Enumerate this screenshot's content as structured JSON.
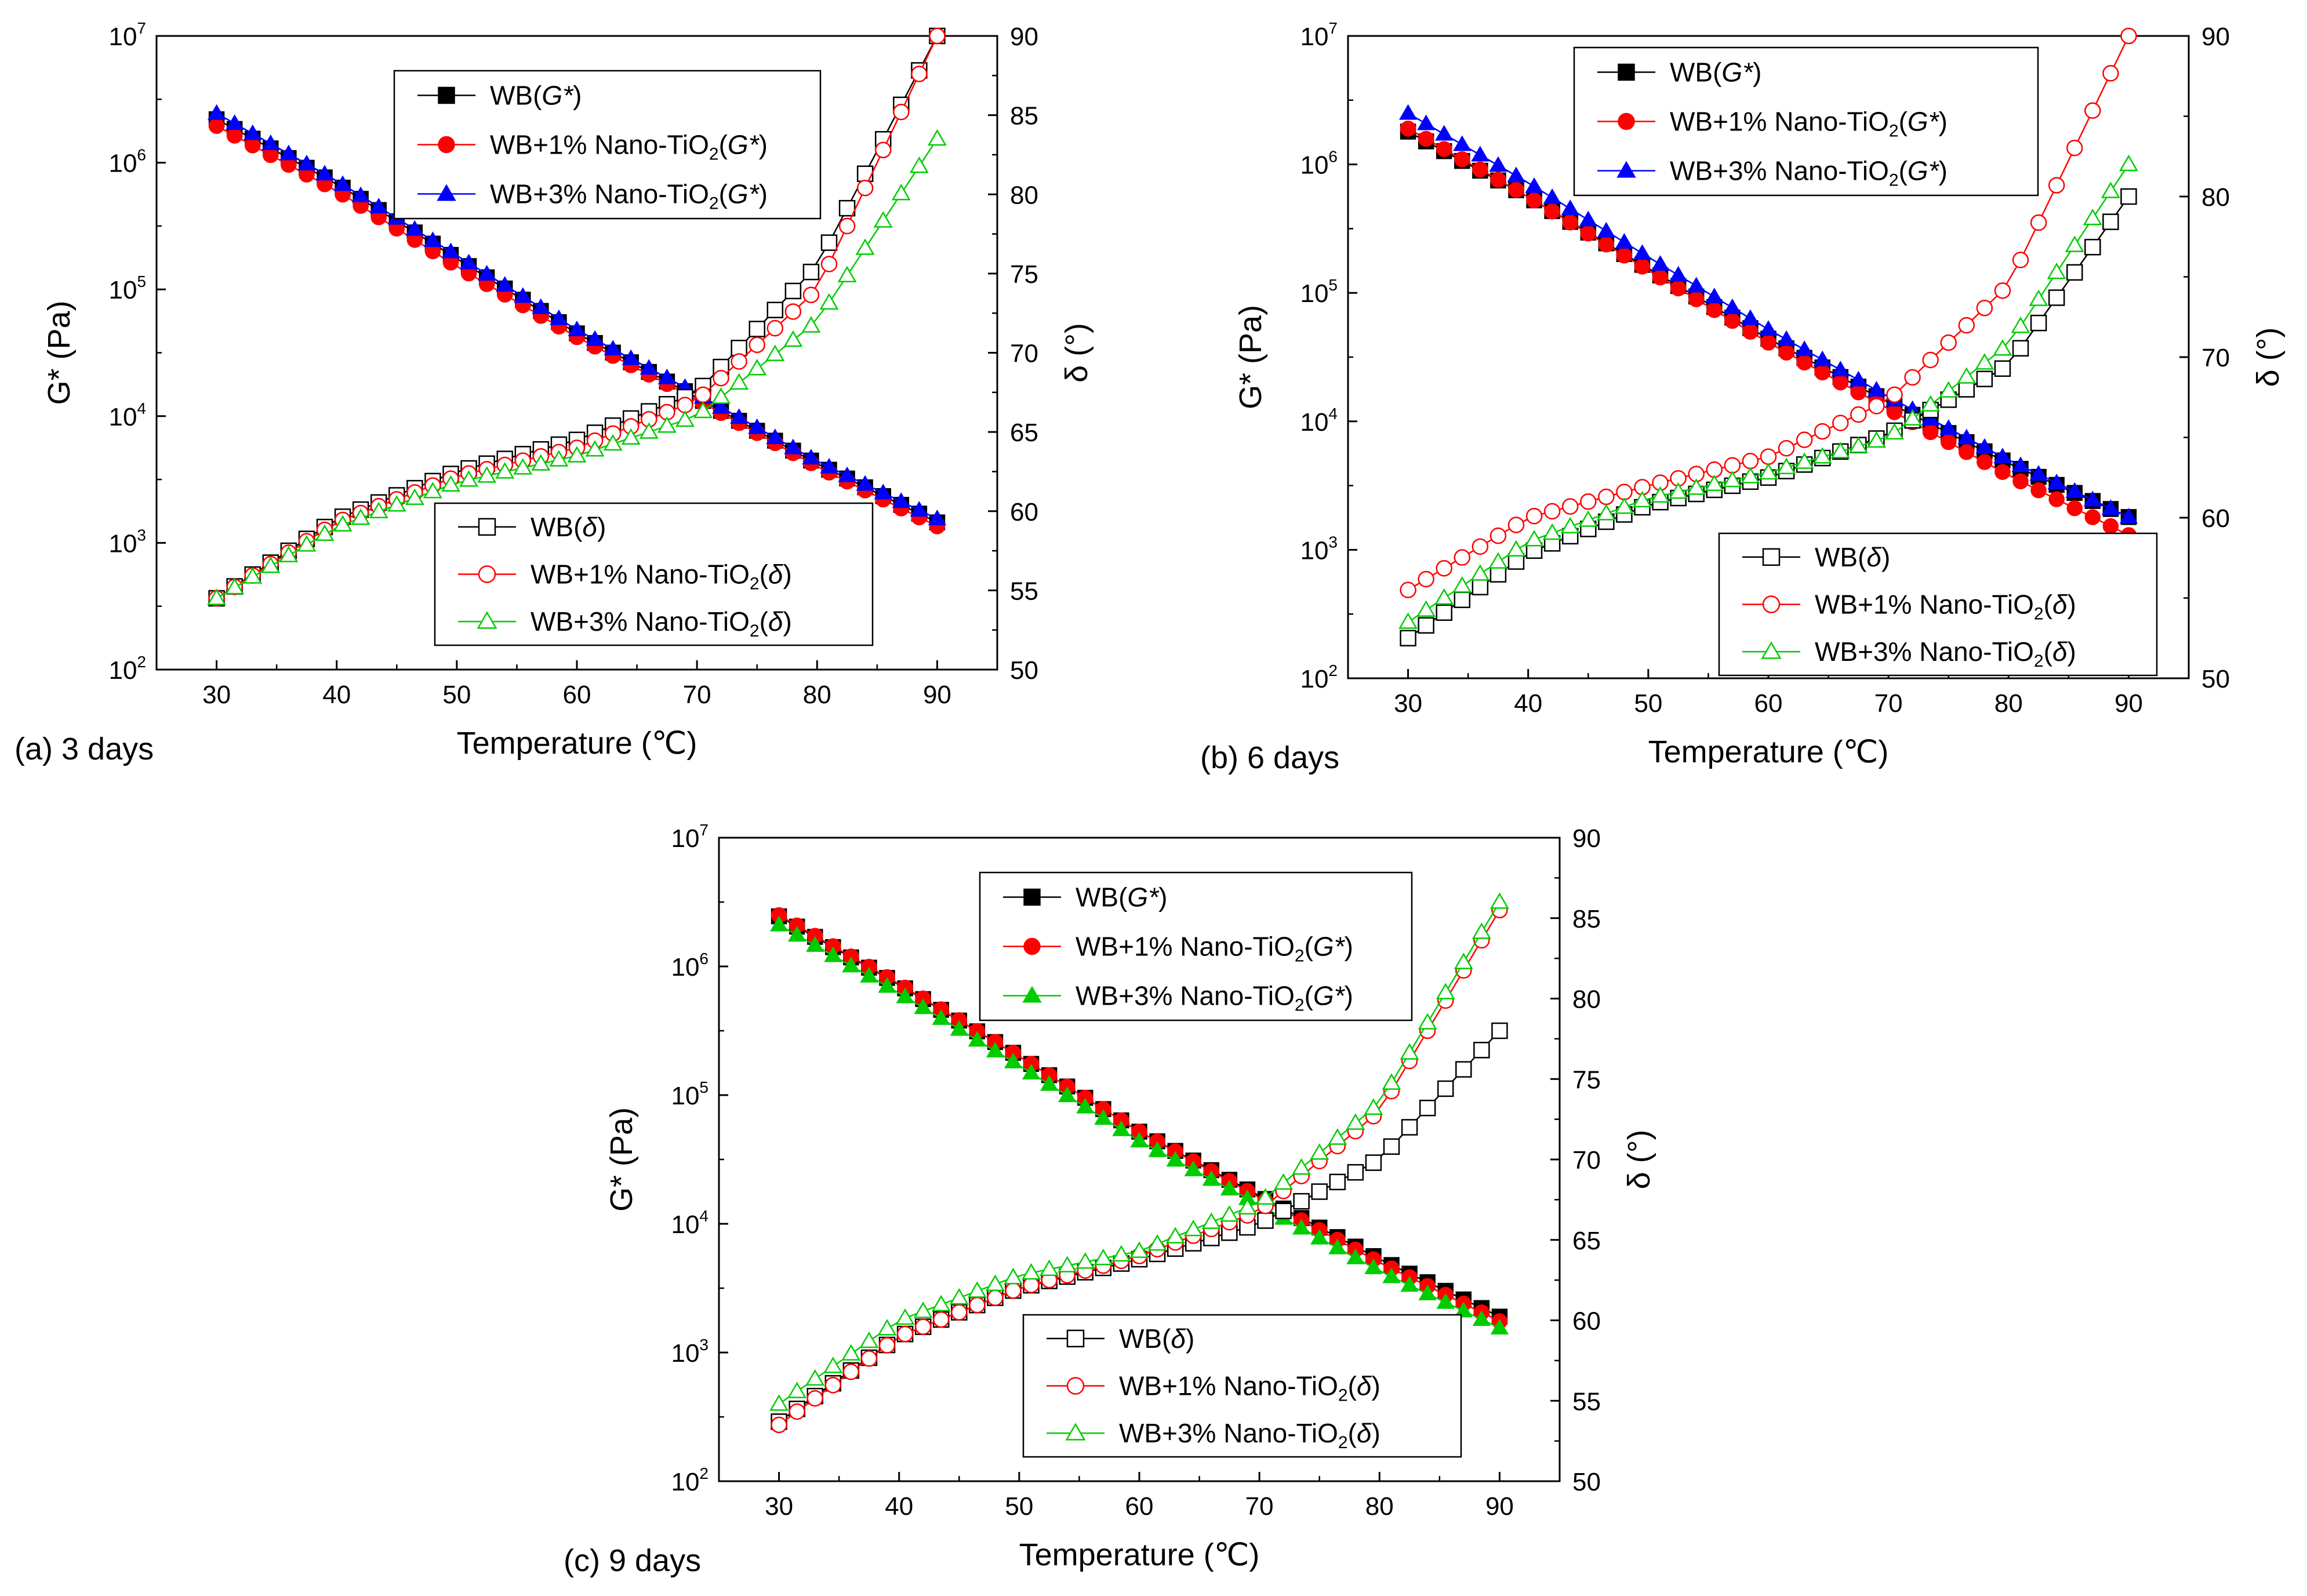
{
  "chart_data": [
    {
      "type": "line",
      "caption": "(a) 3 days",
      "xlabel": "Temperature (℃)",
      "ylabel_left": "G* (Pa)",
      "ylabel_right": "δ (°)",
      "xlim": [
        25,
        95
      ],
      "x_ticks": [
        30,
        40,
        50,
        60,
        70,
        80,
        90
      ],
      "y_left_log": true,
      "y_left_lim": [
        100,
        10000000
      ],
      "y_left_tick_exponents": [
        2,
        3,
        4,
        5,
        6,
        7
      ],
      "y_left_tick_base": "10",
      "y_right_lim": [
        50,
        90
      ],
      "y_right_ticks": [
        50,
        55,
        60,
        65,
        70,
        75,
        80,
        85,
        90
      ],
      "legend_top": [
        {
          "base": "WB(",
          "ital": "G*",
          "close": ")",
          "color": "#000000",
          "marker": "square"
        },
        {
          "base": "WB+1% Nano-TiO",
          "sub": "2",
          "paren": "(",
          "ital": "G*",
          "close": ")",
          "color": "#ff0000",
          "marker": "circle"
        },
        {
          "base": "WB+3% Nano-TiO",
          "sub": "2",
          "paren": "(",
          "ital": "G*",
          "close": ")",
          "color": "#0000ff",
          "marker": "triangle"
        }
      ],
      "legend_bottom": [
        {
          "base": "WB(",
          "ital": "δ",
          "close": ")",
          "color": "#000000",
          "marker": "square"
        },
        {
          "base": "WB+1% Nano-TiO",
          "sub": "2",
          "paren": "(",
          "ital": "δ",
          "close": ")",
          "color": "#ff0000",
          "marker": "circle"
        },
        {
          "base": "WB+3% Nano-TiO",
          "sub": "2",
          "paren": "(",
          "ital": "δ",
          "close": ")",
          "color": "#00cc00",
          "marker": "triangle"
        }
      ],
      "series": [
        {
          "name": "WB(G*)",
          "axis": "left",
          "color": "#000000",
          "marker": "square",
          "filled": true,
          "x": [
            30,
            40,
            50,
            60,
            70,
            80,
            90
          ],
          "values": [
            2200000,
            680000,
            175000,
            45000,
            14000,
            4200,
            1450
          ]
        },
        {
          "name": "WB+1% Nano-TiO2(G*)",
          "axis": "left",
          "color": "#ff0000",
          "marker": "circle",
          "filled": true,
          "x": [
            30,
            40,
            50,
            60,
            70,
            80,
            90
          ],
          "values": [
            1950000,
            600000,
            152000,
            42000,
            13500,
            4000,
            1350
          ]
        },
        {
          "name": "WB+3% Nano-TiO2(G*)",
          "axis": "left",
          "color": "#0000ff",
          "marker": "triangle",
          "filled": true,
          "x": [
            30,
            40,
            50,
            60,
            70,
            80,
            90
          ],
          "values": [
            2450000,
            720000,
            185000,
            48000,
            15000,
            4400,
            1550
          ]
        },
        {
          "name": "WB(δ)",
          "axis": "right",
          "color": "#000000",
          "marker": "square",
          "filled": false,
          "x": [
            30,
            40,
            50,
            60,
            70,
            80,
            90
          ],
          "values": [
            54.5,
            59.5,
            62.5,
            64.5,
            67.5,
            75.5,
            90
          ]
        },
        {
          "name": "WB+1% Nano-TiO2(δ)",
          "axis": "right",
          "color": "#ff0000",
          "marker": "circle",
          "filled": false,
          "x": [
            30,
            40,
            50,
            60,
            70,
            80,
            90
          ],
          "values": [
            54.5,
            59.3,
            62.2,
            64.0,
            67.0,
            74.0,
            90
          ]
        },
        {
          "name": "WB+3% Nano-TiO2(δ)",
          "axis": "right",
          "color": "#00cc00",
          "marker": "triangle",
          "filled": false,
          "x": [
            30,
            40,
            50,
            60,
            70,
            80,
            90
          ],
          "values": [
            54.5,
            59.0,
            61.8,
            63.5,
            66.0,
            72.0,
            83.5
          ]
        }
      ]
    },
    {
      "type": "line",
      "caption": "(b) 6 days",
      "xlabel": "Temperature (℃)",
      "ylabel_left": "G* (Pa)",
      "ylabel_right": "δ (°)",
      "xlim": [
        25,
        95
      ],
      "x_ticks": [
        30,
        40,
        50,
        60,
        70,
        80,
        90
      ],
      "y_left_log": true,
      "y_left_lim": [
        100,
        10000000
      ],
      "y_left_tick_exponents": [
        2,
        3,
        4,
        5,
        6,
        7
      ],
      "y_left_tick_base": "10",
      "y_right_lim": [
        50,
        90
      ],
      "y_right_ticks": [
        50,
        60,
        70,
        80,
        90
      ],
      "legend_top": [
        {
          "base": "WB(",
          "ital": "G*",
          "close": ")",
          "color": "#000000",
          "marker": "square"
        },
        {
          "base": "WB+1% Nano-TiO",
          "sub": "2",
          "paren": "(",
          "ital": "G*",
          "close": ")",
          "color": "#ff0000",
          "marker": "circle"
        },
        {
          "base": "WB+3% Nano-TiO",
          "sub": "2",
          "paren": "(",
          "ital": "G*",
          "close": ")",
          "color": "#0000ff",
          "marker": "triangle"
        }
      ],
      "legend_bottom": [
        {
          "base": "WB(",
          "ital": "δ",
          "close": ")",
          "color": "#000000",
          "marker": "square"
        },
        {
          "base": "WB+1% Nano-TiO",
          "sub": "2",
          "paren": "(",
          "ital": "δ",
          "close": ")",
          "color": "#ff0000",
          "marker": "circle"
        },
        {
          "base": "WB+3% Nano-TiO",
          "sub": "2",
          "paren": "(",
          "ital": "δ",
          "close": ")",
          "color": "#00cc00",
          "marker": "triangle"
        }
      ],
      "series": [
        {
          "name": "WB(G*)",
          "axis": "left",
          "color": "#000000",
          "marker": "square",
          "filled": true,
          "x": [
            30,
            40,
            50,
            60,
            70,
            80,
            90
          ],
          "values": [
            1800000,
            560000,
            155000,
            44000,
            14000,
            4700,
            1800
          ]
        },
        {
          "name": "WB+1% Nano-TiO2(G*)",
          "axis": "left",
          "color": "#ff0000",
          "marker": "circle",
          "filled": true,
          "x": [
            30,
            40,
            50,
            60,
            70,
            80,
            90
          ],
          "values": [
            1900000,
            560000,
            150000,
            41000,
            12500,
            3800,
            1300
          ]
        },
        {
          "name": "WB+3% Nano-TiO2(G*)",
          "axis": "left",
          "color": "#0000ff",
          "marker": "triangle",
          "filled": true,
          "x": [
            30,
            40,
            50,
            60,
            70,
            80,
            90
          ],
          "values": [
            2500000,
            720000,
            190000,
            52000,
            15500,
            5000,
            1800
          ]
        },
        {
          "name": "WB(δ)",
          "axis": "right",
          "color": "#000000",
          "marker": "square",
          "filled": false,
          "x": [
            30,
            40,
            50,
            60,
            70,
            80,
            90
          ],
          "values": [
            52.5,
            57.8,
            60.8,
            62.5,
            65.2,
            69.5,
            80.0
          ]
        },
        {
          "name": "WB+1% Nano-TiO2(δ)",
          "axis": "right",
          "color": "#ff0000",
          "marker": "circle",
          "filled": false,
          "x": [
            30,
            40,
            50,
            60,
            70,
            80,
            90
          ],
          "values": [
            55.5,
            60.0,
            62.0,
            63.8,
            67.3,
            74.5,
            90.0
          ]
        },
        {
          "name": "WB+3% Nano-TiO2(δ)",
          "axis": "right",
          "color": "#00cc00",
          "marker": "triangle",
          "filled": false,
          "x": [
            30,
            40,
            50,
            60,
            70,
            80,
            90
          ],
          "values": [
            53.5,
            58.5,
            61.2,
            62.8,
            65.0,
            70.8,
            82.0
          ]
        }
      ]
    },
    {
      "type": "line",
      "caption": "(c) 9 days",
      "xlabel": "Temperature (℃)",
      "ylabel_left": "G* (Pa)",
      "ylabel_right": "δ (°)",
      "xlim": [
        25,
        95
      ],
      "x_ticks": [
        30,
        40,
        50,
        60,
        70,
        80,
        90
      ],
      "y_left_log": true,
      "y_left_lim": [
        100,
        10000000
      ],
      "y_left_tick_exponents": [
        2,
        3,
        4,
        5,
        6,
        7
      ],
      "y_left_tick_base": "10",
      "y_right_lim": [
        50,
        90
      ],
      "y_right_ticks": [
        50,
        55,
        60,
        65,
        70,
        75,
        80,
        85,
        90
      ],
      "legend_top": [
        {
          "base": "WB(",
          "ital": "G*",
          "close": ")",
          "color": "#000000",
          "marker": "square"
        },
        {
          "base": "WB+1% Nano-TiO",
          "sub": "2",
          "paren": "(",
          "ital": "G*",
          "close": ")",
          "color": "#ff0000",
          "marker": "circle"
        },
        {
          "base": "WB+3% Nano-TiO",
          "sub": "2",
          "paren": "(",
          "ital": "G*",
          "close": ")",
          "color": "#00cc00",
          "marker": "triangle"
        }
      ],
      "legend_bottom": [
        {
          "base": "WB(",
          "ital": "δ",
          "close": ")",
          "color": "#000000",
          "marker": "square"
        },
        {
          "base": "WB+1% Nano-TiO",
          "sub": "2",
          "paren": "(",
          "ital": "δ",
          "close": ")",
          "color": "#ff0000",
          "marker": "circle"
        },
        {
          "base": "WB+3% Nano-TiO",
          "sub": "2",
          "paren": "(",
          "ital": "δ",
          "close": ")",
          "color": "#00cc00",
          "marker": "triangle"
        }
      ],
      "series": [
        {
          "name": "WB(G*)",
          "axis": "left",
          "color": "#000000",
          "marker": "square",
          "filled": true,
          "x": [
            30,
            40,
            50,
            60,
            70,
            80,
            90
          ],
          "values": [
            2450000,
            720000,
            200000,
            52000,
            16500,
            5300,
            1900
          ]
        },
        {
          "name": "WB+1% Nano-TiO2(G*)",
          "axis": "left",
          "color": "#ff0000",
          "marker": "circle",
          "filled": true,
          "x": [
            30,
            40,
            50,
            60,
            70,
            80,
            90
          ],
          "values": [
            2500000,
            730000,
            200000,
            52000,
            16000,
            5000,
            1750
          ]
        },
        {
          "name": "WB+3% Nano-TiO2(G*)",
          "axis": "left",
          "color": "#00cc00",
          "marker": "triangle",
          "filled": true,
          "x": [
            30,
            40,
            50,
            60,
            70,
            80,
            90
          ],
          "values": [
            2100000,
            620000,
            170000,
            44000,
            14000,
            4300,
            1550
          ]
        },
        {
          "name": "WB(δ)",
          "axis": "right",
          "color": "#000000",
          "marker": "square",
          "filled": false,
          "x": [
            30,
            40,
            50,
            60,
            70,
            80,
            90
          ],
          "values": [
            53.7,
            59.0,
            62.0,
            63.8,
            66.0,
            70.0,
            78.0
          ]
        },
        {
          "name": "WB+1% Nano-TiO2(δ)",
          "axis": "right",
          "color": "#ff0000",
          "marker": "circle",
          "filled": false,
          "x": [
            30,
            40,
            50,
            60,
            70,
            80,
            90
          ],
          "values": [
            53.5,
            59.0,
            62.0,
            64.0,
            66.8,
            73.0,
            85.5
          ]
        },
        {
          "name": "WB+3% Nano-TiO2(δ)",
          "axis": "right",
          "color": "#00cc00",
          "marker": "triangle",
          "filled": false,
          "x": [
            30,
            40,
            50,
            60,
            70,
            80,
            90
          ],
          "values": [
            54.8,
            60.0,
            62.8,
            64.3,
            67.3,
            73.5,
            86.0
          ]
        }
      ]
    }
  ]
}
